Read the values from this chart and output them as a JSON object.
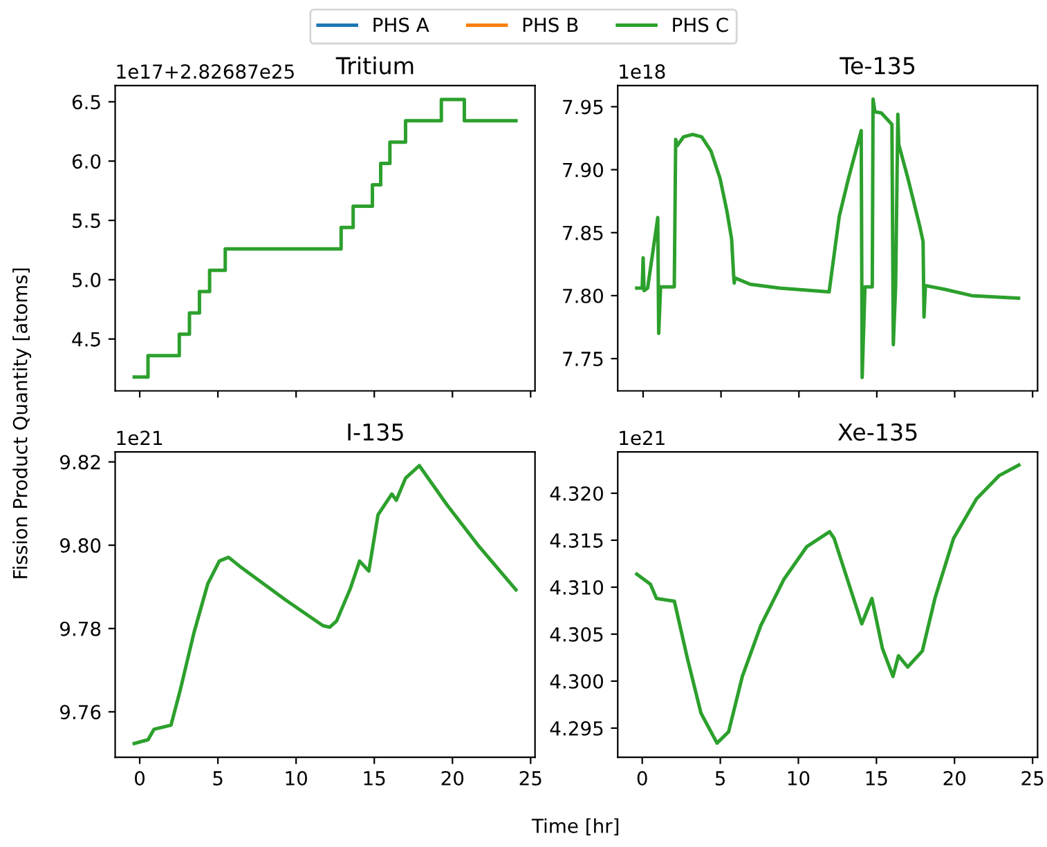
{
  "chart_data": [
    {
      "type": "step",
      "title": "Tritium",
      "ylabel": "Fission Product Quantity [atoms]",
      "legend": "top",
      "tick_labels": "y",
      "annotations": [
        "1e17+2.82687e25"
      ],
      "x": [
        -0.35,
        0.53,
        2.53,
        3.18,
        3.82,
        4.47,
        5.47,
        12.88,
        13.65,
        14.88,
        15.41,
        16.0,
        17.0,
        19.29,
        20.76,
        24.06
      ],
      "series": [
        {
          "name": "PHS A",
          "color": "#1f77b4",
          "values": [
            null,
            null,
            null,
            null,
            null,
            null,
            null,
            null,
            null,
            null,
            null,
            null,
            null,
            null,
            null,
            null
          ]
        },
        {
          "name": "PHS B",
          "color": "#ff7f0e",
          "values": [
            null,
            null,
            null,
            null,
            null,
            null,
            null,
            null,
            null,
            null,
            null,
            null,
            null,
            null,
            null,
            null
          ]
        },
        {
          "name": "PHS C",
          "color": "#2ca02c",
          "values": [
            4.18,
            4.36,
            4.54,
            4.72,
            4.9,
            5.08,
            5.26,
            5.44,
            5.62,
            5.8,
            5.98,
            6.16,
            6.34,
            6.52,
            6.34,
            6.34
          ]
        }
      ],
      "xlim": [
        -1.57,
        25.28
      ],
      "xticks": [
        0,
        5,
        10,
        15,
        20,
        25
      ],
      "ylim": [
        4.063,
        6.637
      ],
      "yticks": [
        4.5,
        {
          "value": 5,
          "label": "5.0"
        },
        5.5,
        {
          "value": 6,
          "label": "6.0"
        },
        6.5
      ]
    },
    {
      "type": "line",
      "title": "Te-135",
      "tick_labels": "y",
      "annotations": [
        "1e18"
      ],
      "x": [
        -0.41,
        -0.06,
        0,
        0.06,
        0.29,
        0.94,
        1.0,
        1.12,
        2.0,
        2.09,
        2.18,
        2.59,
        3.18,
        3.76,
        4.35,
        4.94,
        5.38,
        5.68,
        5.82,
        5.85,
        5.9,
        6.88,
        8.76,
        11.94,
        12.59,
        13.18,
        14.0,
        14.06,
        14.24,
        14.71,
        14.76,
        14.88,
        15.29,
        15.97,
        16.06,
        16.21,
        16.35,
        16.41,
        17.0,
        17.74,
        17.97,
        18.03,
        18.12,
        19.35,
        21.1,
        24.1
      ],
      "series": [
        {
          "color": "#2ca02c",
          "values": [
            7.806,
            7.806,
            7.83,
            7.804,
            7.806,
            7.862,
            7.77,
            7.807,
            7.807,
            7.924,
            7.919,
            7.926,
            7.928,
            7.926,
            7.915,
            7.893,
            7.867,
            7.845,
            7.814,
            7.81,
            7.814,
            7.809,
            7.806,
            7.803,
            7.863,
            7.893,
            7.931,
            7.735,
            7.807,
            7.807,
            7.956,
            7.946,
            7.945,
            7.936,
            7.761,
            7.808,
            7.944,
            7.92,
            7.893,
            7.856,
            7.843,
            7.783,
            7.808,
            7.805,
            7.8,
            7.798
          ]
        }
      ],
      "xlim": [
        -1.63,
        25.32
      ],
      "xticks": [
        0,
        5,
        10,
        15,
        20,
        25
      ],
      "ylim": [
        7.7244,
        7.9668
      ],
      "yticks": [
        {
          "value": 7.75,
          "label": "7.75"
        },
        {
          "value": 7.8,
          "label": "7.80"
        },
        {
          "value": 7.85,
          "label": "7.85"
        },
        {
          "value": 7.9,
          "label": "7.90"
        },
        {
          "value": 7.95,
          "label": "7.95"
        }
      ]
    },
    {
      "type": "line",
      "title": "I-135",
      "xlabel": "Time [hr]",
      "annotations": [
        "1e21"
      ],
      "x": [
        -0.35,
        0.53,
        0.91,
        2.0,
        2.59,
        3.47,
        4.35,
        5.09,
        5.68,
        6.41,
        9.35,
        11.71,
        12.15,
        12.59,
        13.47,
        14.06,
        14.65,
        15.24,
        16.12,
        16.41,
        17.0,
        17.88,
        19.65,
        21.7,
        24.06
      ],
      "series": [
        {
          "color": "#2ca02c",
          "values": [
            9.7524,
            9.7533,
            9.7558,
            9.7568,
            9.7652,
            9.779,
            9.7907,
            9.7962,
            9.7971,
            9.7949,
            9.7868,
            9.7807,
            9.7803,
            9.7818,
            9.7896,
            9.7962,
            9.7938,
            9.8073,
            9.8123,
            9.8108,
            9.8161,
            9.8191,
            9.8097,
            9.7997,
            9.7893
          ]
        }
      ],
      "xlim": [
        -1.57,
        25.28
      ],
      "xticks": [
        0,
        5,
        10,
        15,
        20,
        25
      ],
      "ylim": [
        9.7491,
        9.8224
      ],
      "yticks": [
        {
          "value": 9.76,
          "label": "9.76"
        },
        {
          "value": 9.78,
          "label": "9.78"
        },
        {
          "value": 9.8,
          "label": "9.80"
        },
        {
          "value": 9.82,
          "label": "9.82"
        }
      ]
    },
    {
      "type": "line",
      "title": "Xe-135",
      "annotations": [
        "1e21"
      ],
      "x": [
        -0.35,
        0.53,
        0.91,
        2.06,
        2.88,
        3.76,
        4.79,
        5.53,
        6.41,
        7.59,
        9.06,
        10.53,
        12.0,
        12.29,
        14.06,
        14.71,
        15.38,
        16.06,
        16.41,
        17.0,
        17.94,
        18.76,
        19.94,
        21.41,
        22.88,
        24.12
      ],
      "series": [
        {
          "color": "#2ca02c",
          "values": [
            4.3114,
            4.3103,
            4.3088,
            4.3085,
            4.3025,
            4.2966,
            4.2934,
            4.2946,
            4.3005,
            4.3059,
            4.3108,
            4.3143,
            4.3159,
            4.3152,
            4.3061,
            4.3088,
            4.3035,
            4.3005,
            4.3027,
            4.3015,
            4.3032,
            4.3089,
            4.3152,
            4.3194,
            4.3219,
            4.323
          ]
        }
      ],
      "xlim": [
        -1.57,
        25.32
      ],
      "xticks": [
        0,
        5,
        10,
        15,
        20,
        25
      ],
      "ylim": [
        4.2919,
        4.3244
      ],
      "yticks": [
        {
          "value": 4.295,
          "label": "4.295"
        },
        {
          "value": 4.3,
          "label": "4.300"
        },
        {
          "value": 4.305,
          "label": "4.305"
        },
        {
          "value": 4.31,
          "label": "4.310"
        },
        {
          "value": 4.315,
          "label": "4.315"
        },
        {
          "value": 4.32,
          "label": "4.320"
        }
      ]
    }
  ]
}
